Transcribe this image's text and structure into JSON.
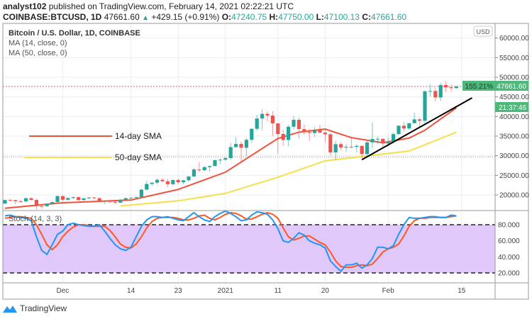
{
  "header": {
    "author": "analyst102",
    "published": "published on TradingView.com, February 14, 2021 02:22:21 UTC",
    "symbol": "COINBASE:BTCUSD, 1D",
    "last": "47661.60",
    "change": "+429.15 (+0.91%)",
    "o_label": "O:",
    "o": "47240.75",
    "h_label": "H:",
    "h": "47750.00",
    "l_label": "L:",
    "l": "47100.13",
    "c_label": "C:",
    "c": "47661.60"
  },
  "legend": {
    "title": "Bitcoin / U.S. Dollar, 1D, COINBASE",
    "ma1": "MA (14, close, 0)",
    "ma2": "MA (50, close, 0)",
    "stoch": "Stoch (14, 3, 3)"
  },
  "annotations": {
    "sma14": "14-day SMA",
    "sma50": "50-day SMA"
  },
  "price_axis": {
    "currency": "USD",
    "ticks": [
      "60000.00",
      "55000.00",
      "50000.00",
      "45000.00",
      "40000.00",
      "35000.00",
      "30000.00",
      "25000.00",
      "20000.00"
    ],
    "last_price_label": "47661.60",
    "countdown": "21:37:46",
    "percent_badge": "155.21%"
  },
  "stoch_axis": {
    "ticks": [
      "80.000",
      "60.000",
      "40.000",
      "20.000"
    ]
  },
  "time_axis": {
    "ticks": [
      "Dec",
      "14",
      "23",
      "2021",
      "11",
      "20",
      "Feb",
      "15"
    ]
  },
  "footer": {
    "brand": "TradingView"
  },
  "colors": {
    "up": "#26a69a",
    "down": "#ef5350",
    "ma14": "#f0523a",
    "ma50": "#f5e04a",
    "stoch_k": "#2196f3",
    "stoch_d": "#ff5722",
    "stoch_band": "#e1c8fa",
    "trendline": "#000000"
  },
  "chart_data": [
    {
      "type": "candlestick",
      "start_date": "2020-11-20",
      "interval": "1D",
      "ylim": [
        15000,
        62000
      ],
      "grid": true,
      "ohlc": [
        [
          17800,
          18800,
          17750,
          18700
        ],
        [
          18700,
          18950,
          18400,
          18680
        ],
        [
          18680,
          18700,
          17650,
          18400
        ],
        [
          18400,
          18760,
          18000,
          18370
        ],
        [
          18370,
          19400,
          18100,
          19150
        ],
        [
          19150,
          19480,
          18620,
          18720
        ],
        [
          18720,
          18900,
          16300,
          17150
        ],
        [
          17150,
          17460,
          16500,
          17140
        ],
        [
          17140,
          17880,
          16900,
          17720
        ],
        [
          17720,
          18300,
          17520,
          18180
        ],
        [
          18180,
          19860,
          18180,
          19700
        ],
        [
          19700,
          19920,
          18320,
          18770
        ],
        [
          18770,
          19310,
          18500,
          19220
        ],
        [
          19220,
          19560,
          18920,
          19440
        ],
        [
          19440,
          19520,
          18570,
          18690
        ],
        [
          18690,
          19180,
          18500,
          19150
        ],
        [
          19150,
          19410,
          18860,
          19360
        ],
        [
          19360,
          19420,
          18900,
          19170
        ],
        [
          19170,
          19290,
          18200,
          18320
        ],
        [
          18320,
          18640,
          17650,
          18550
        ],
        [
          18550,
          18560,
          17910,
          18250
        ],
        [
          18250,
          18290,
          17570,
          18030
        ],
        [
          18030,
          18940,
          18000,
          18800
        ],
        [
          18800,
          19400,
          18710,
          19170
        ],
        [
          19170,
          19350,
          19000,
          19270
        ],
        [
          19270,
          19570,
          19080,
          19440
        ],
        [
          19440,
          21560,
          19300,
          21350
        ],
        [
          21350,
          23700,
          21230,
          22800
        ],
        [
          22800,
          23280,
          22350,
          23130
        ],
        [
          23130,
          24170,
          22760,
          23860
        ],
        [
          23860,
          24300,
          23100,
          23480
        ],
        [
          23480,
          24100,
          22000,
          22740
        ],
        [
          22740,
          23840,
          22350,
          23820
        ],
        [
          23820,
          24100,
          22700,
          23240
        ],
        [
          23240,
          23800,
          22700,
          23730
        ],
        [
          23730,
          24790,
          23440,
          24710
        ],
        [
          24710,
          26870,
          24520,
          26490
        ],
        [
          26490,
          28420,
          25860,
          26280
        ],
        [
          26280,
          27500,
          26100,
          27080
        ],
        [
          27080,
          27400,
          25880,
          27360
        ],
        [
          27360,
          28990,
          27320,
          28880
        ],
        [
          28880,
          29300,
          27850,
          28990
        ],
        [
          28990,
          29680,
          28700,
          29400
        ],
        [
          29400,
          33300,
          28950,
          32200
        ],
        [
          32200,
          34780,
          32000,
          33000
        ],
        [
          33000,
          33600,
          28130,
          32030
        ],
        [
          32030,
          34500,
          29900,
          34050
        ],
        [
          34050,
          36940,
          33300,
          36860
        ],
        [
          36860,
          40380,
          36350,
          39490
        ],
        [
          39490,
          41950,
          36500,
          40670
        ],
        [
          40670,
          41380,
          38720,
          40240
        ],
        [
          40240,
          41350,
          35110,
          38240
        ],
        [
          38240,
          38260,
          30400,
          35540
        ],
        [
          35540,
          36620,
          32530,
          34010
        ],
        [
          34010,
          37850,
          32380,
          37390
        ],
        [
          37390,
          40100,
          36700,
          39150
        ],
        [
          39150,
          39700,
          34400,
          36770
        ],
        [
          36770,
          37950,
          35360,
          36020
        ],
        [
          36020,
          36850,
          33850,
          35790
        ],
        [
          35790,
          37300,
          34760,
          36630
        ],
        [
          36630,
          37850,
          35900,
          35890
        ],
        [
          35890,
          36400,
          33400,
          35470
        ],
        [
          35470,
          35600,
          30070,
          30850
        ],
        [
          30850,
          33800,
          28950,
          32950
        ],
        [
          32950,
          33450,
          31400,
          32080
        ],
        [
          32080,
          32950,
          30900,
          32270
        ],
        [
          32270,
          34880,
          31950,
          32250
        ],
        [
          32250,
          32900,
          30840,
          32510
        ],
        [
          32510,
          32560,
          29240,
          30430
        ],
        [
          30430,
          33780,
          29850,
          33400
        ],
        [
          33400,
          38530,
          31960,
          34270
        ],
        [
          34270,
          34870,
          32900,
          34320
        ],
        [
          34320,
          34330,
          32300,
          33110
        ],
        [
          33110,
          34700,
          32300,
          33540
        ],
        [
          33540,
          35970,
          33450,
          35510
        ],
        [
          35510,
          37650,
          35390,
          37660
        ],
        [
          37660,
          38600,
          36200,
          36950
        ],
        [
          36950,
          38300,
          36600,
          38290
        ],
        [
          38290,
          40950,
          38230,
          39260
        ],
        [
          39260,
          39690,
          37400,
          38900
        ],
        [
          38900,
          46750,
          37990,
          46400
        ],
        [
          46400,
          48200,
          45100,
          46500
        ],
        [
          46500,
          47320,
          43800,
          44850
        ],
        [
          44850,
          48630,
          44000,
          48010
        ],
        [
          48010,
          48950,
          46260,
          47440
        ],
        [
          47440,
          48140,
          46260,
          47232
        ],
        [
          47240.75,
          47750,
          47100.13,
          47661.6
        ]
      ],
      "ma14": [
        [
          "2020-11-20",
          16600
        ],
        [
          "2020-12-01",
          18000
        ],
        [
          "2020-12-14",
          18700
        ],
        [
          "2020-12-23",
          21400
        ],
        [
          "2021-01-01",
          25800
        ],
        [
          "2021-01-11",
          34400
        ],
        [
          "2021-01-15",
          36000
        ],
        [
          "2021-01-20",
          36800
        ],
        [
          "2021-01-25",
          34600
        ],
        [
          "2021-01-31",
          33300
        ],
        [
          "2021-02-05",
          34500
        ],
        [
          "2021-02-08",
          36500
        ],
        [
          "2021-02-14",
          42200
        ]
      ],
      "ma50": [
        [
          "2020-12-12",
          17200
        ],
        [
          "2020-12-23",
          18500
        ],
        [
          "2021-01-01",
          20400
        ],
        [
          "2021-01-11",
          24500
        ],
        [
          "2021-01-20",
          28700
        ],
        [
          "2021-02-05",
          31200
        ],
        [
          "2021-02-08",
          32800
        ],
        [
          "2021-02-14",
          36000
        ]
      ],
      "trendline": [
        [
          "2021-01-27",
          29000
        ],
        [
          "2021-02-17",
          44750
        ]
      ],
      "last_price_line": 47661.6,
      "horizontal_line": 29700
    },
    {
      "type": "line",
      "name": "Stoch (14, 3, 3)",
      "start_date": "2020-11-20",
      "ylim": [
        0,
        100
      ],
      "bands": [
        20,
        80
      ],
      "k": [
        91,
        92,
        90,
        89,
        88,
        85,
        65,
        48,
        43,
        55,
        68,
        72,
        80,
        82,
        80,
        79,
        78,
        78,
        80,
        72,
        63,
        55,
        50,
        48,
        52,
        65,
        78,
        86,
        90,
        90,
        89,
        90,
        88,
        86,
        85,
        90,
        95,
        90,
        86,
        84,
        90,
        94,
        97,
        94,
        90,
        85,
        86,
        92,
        96,
        95,
        93,
        86,
        75,
        60,
        58,
        63,
        70,
        67,
        60,
        57,
        55,
        51,
        35,
        28,
        22,
        30,
        30,
        32,
        26,
        30,
        38,
        52,
        52,
        50,
        54,
        68,
        80,
        89,
        88,
        88,
        89,
        90,
        90,
        89,
        89,
        92,
        91
      ],
      "d": [
        88,
        89,
        90,
        90,
        89,
        88,
        80,
        68,
        55,
        49,
        55,
        65,
        72,
        77,
        80,
        80,
        79,
        78,
        78,
        78,
        73,
        65,
        56,
        52,
        51,
        56,
        65,
        76,
        84,
        88,
        89,
        89,
        89,
        88,
        86,
        86,
        88,
        91,
        92,
        88,
        86,
        89,
        93,
        95,
        94,
        91,
        87,
        87,
        90,
        93,
        95,
        93,
        88,
        76,
        65,
        61,
        63,
        66,
        66,
        62,
        58,
        55,
        46,
        35,
        28,
        27,
        27,
        29,
        30,
        29,
        31,
        38,
        46,
        50,
        52,
        56,
        66,
        78,
        85,
        88,
        88,
        89,
        89,
        89,
        89,
        90,
        91
      ]
    }
  ]
}
